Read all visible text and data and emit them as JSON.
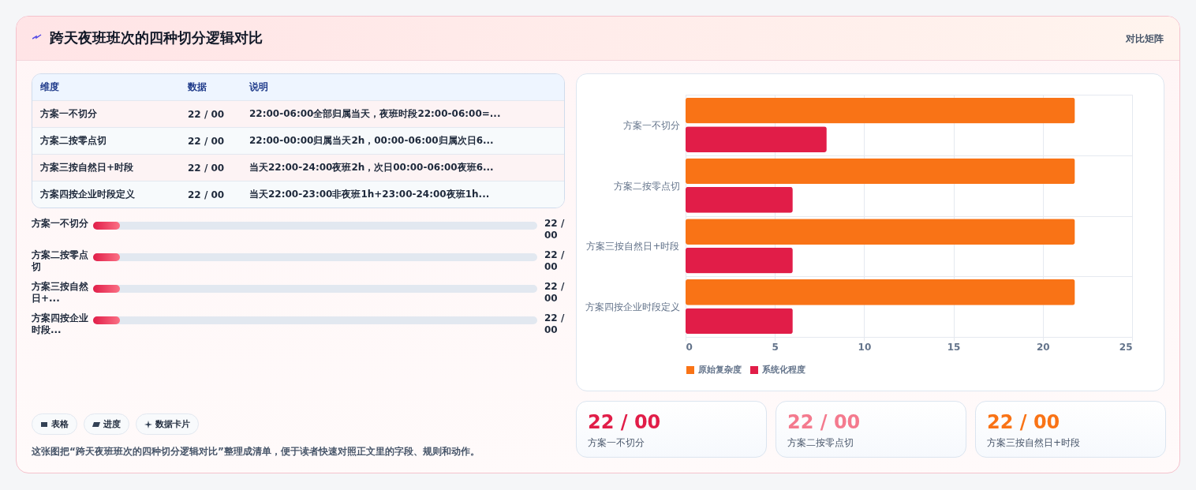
{
  "chart_data": [
    {
      "type": "other",
      "title": "跨天夜班班次的四种切分逻辑对比",
      "annotations": [
        "对比矩阵"
      ]
    },
    {
      "type": "other",
      "annotations": [
        "维度",
        "数据",
        "说明",
        "方案一不切分",
        "22 / 00",
        "22:00-06:00全部归属当天，夜班时段22:00-06:00=...",
        "方案二按零点切",
        "22 / 00",
        "22:00-00:00归属当天2h，00:00-06:00归属次日6...",
        "方案三按自然日+时段",
        "22 / 00",
        "当天22:00-24:00夜班2h，次日00:00-06:00夜班6...",
        "方案四按企业时段定义",
        "22 / 00",
        "当天22:00-23:00非夜班1h+23:00-24:00夜班1h..."
      ]
    },
    {
      "type": "other",
      "annotations": [
        "方案一不切分",
        "22 / 00",
        "方案二按零点切",
        "22 / 00",
        "方案三按自然日+...",
        "22 / 00",
        "方案四按企业时段...",
        "22 / 00"
      ]
    },
    {
      "type": "bar",
      "orientation": "horizontal",
      "categories": [
        "方案一不切分",
        "方案二按零点切",
        "方案三按自然日+时段",
        "方案四按企业时段定义"
      ],
      "series": [
        {
          "name": "原始复杂度",
          "color": "#f97316",
          "values": [
            21.8,
            21.8,
            21.8,
            21.8
          ]
        },
        {
          "name": "系统化程度",
          "color": "#e11d48",
          "values": [
            7.9,
            6.0,
            6.0,
            6.0
          ]
        }
      ],
      "xlim": [
        0,
        25
      ],
      "xticks": [
        0,
        5,
        10,
        15,
        20,
        25
      ],
      "grid": true,
      "legend": "bottom"
    },
    {
      "type": "other",
      "colors": [
        "#e11d48",
        "#f47a8e",
        "#f97316"
      ],
      "annotations": [
        "22 / 00",
        "方案一不切分",
        "22 / 00",
        "方案二按零点切",
        "22 / 00",
        "方案三按自然日+时段"
      ]
    },
    {
      "type": "other",
      "annotations": [
        "表格",
        "进度",
        "数据卡片",
        "这张图把“跨天夜班班次的四种切分逻辑对比”整理成清单，便于读者快速对照正文里的字段、规则和动作。"
      ]
    }
  ]
}
